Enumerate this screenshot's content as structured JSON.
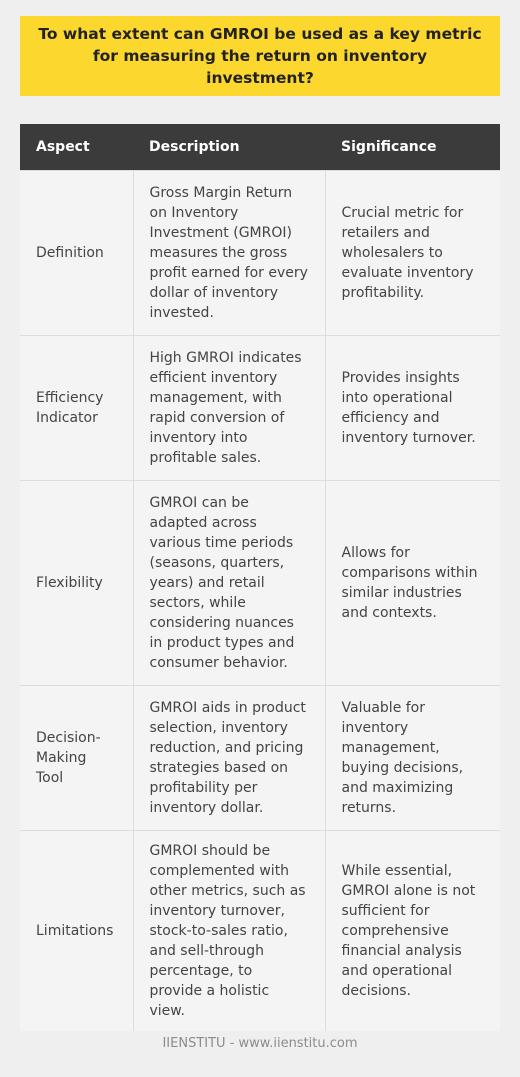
{
  "title": "To what extent can GMROI be used as a key metric for measuring the return on inventory investment?",
  "table": {
    "headers": [
      "Aspect",
      "Description",
      "Significance"
    ],
    "rows": [
      {
        "aspect": "Definition",
        "description": "Gross Margin Return on Inventory Investment (GMROI) measures the gross profit earned for every dollar of inventory invested.",
        "significance": "Crucial metric for retailers and wholesalers to evaluate inventory profitability."
      },
      {
        "aspect": "Efficiency Indicator",
        "description": "High GMROI indicates efficient inventory management, with rapid conversion of inventory into profitable sales.",
        "significance": "Provides insights into operational efficiency and inventory turnover."
      },
      {
        "aspect": "Flexibility",
        "description": "GMROI can be adapted across various time periods (seasons, quarters, years) and retail sectors, while considering nuances in product types and consumer behavior.",
        "significance": "Allows for comparisons within similar industries and contexts."
      },
      {
        "aspect": "Decision-Making Tool",
        "description": "GMROI aids in product selection, inventory reduction, and pricing strategies based on profitability per inventory dollar.",
        "significance": "Valuable for inventory management, buying decisions, and maximizing returns."
      },
      {
        "aspect": "Limitations",
        "description": "GMROI should be complemented with other metrics, such as inventory turnover, stock-to-sales ratio, and sell-through percentage, to provide a holistic view.",
        "significance": "While essential, GMROI alone is not sufficient for comprehensive financial analysis and operational decisions."
      }
    ]
  },
  "footer": "IIENSTITU - www.iienstitu.com",
  "colors": {
    "title_background": "#fcd82e",
    "header_background": "#3b3b3b",
    "page_background": "#efefef"
  }
}
